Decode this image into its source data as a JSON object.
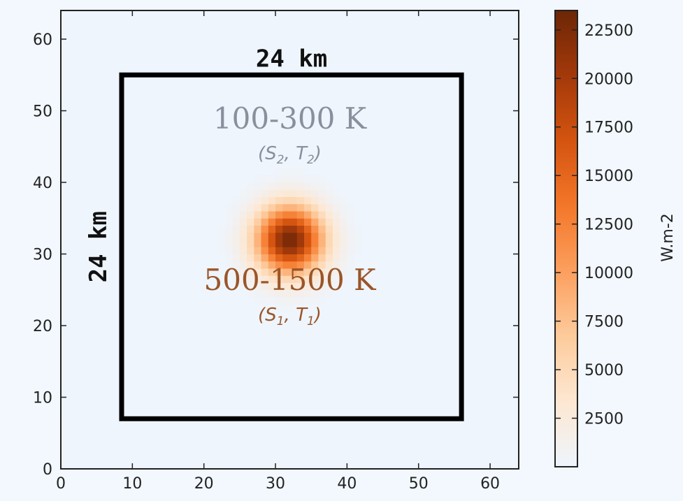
{
  "chart_data": {
    "type": "heatmap",
    "title": "",
    "xlabel": "",
    "ylabel": "",
    "xlim": [
      0,
      64
    ],
    "ylim": [
      0,
      64
    ],
    "x_ticks": [
      0,
      10,
      20,
      30,
      40,
      50,
      60
    ],
    "y_ticks": [
      0,
      10,
      20,
      30,
      40,
      50,
      60
    ],
    "x_tick_labels": [
      "0",
      "10",
      "20",
      "30",
      "40",
      "50",
      "60"
    ],
    "y_tick_labels": [
      "0",
      "10",
      "20",
      "30",
      "40",
      "50",
      "60"
    ],
    "hotspot": {
      "center": [
        32,
        32
      ],
      "peak": 23000,
      "sigma": 3.2
    },
    "box": {
      "x": [
        8.5,
        56
      ],
      "y": [
        7,
        55
      ]
    },
    "box_labels": {
      "top": "24 km",
      "left": "24 km"
    },
    "regions": [
      {
        "label": "100-300 K",
        "sub": "(S2, T2)",
        "sub_sym1": "S",
        "sub_idx1": "2",
        "sub_sym2": "T",
        "sub_idx2": "2",
        "color": "#8a8f9c",
        "x": 32,
        "y": 47.5
      },
      {
        "label": "500-1500 K",
        "sub": "(S1, T1)",
        "sub_sym1": "S",
        "sub_idx1": "1",
        "sub_sym2": "T",
        "sub_idx2": "1",
        "color": "#9b5528",
        "x": 32,
        "y": 25
      }
    ],
    "colorbar": {
      "label": "W.m-2",
      "range": [
        0,
        23500
      ],
      "ticks": [
        2500,
        5000,
        7500,
        10000,
        12500,
        15000,
        17500,
        20000,
        22500
      ],
      "tick_labels": [
        "2500",
        "5000",
        "7500",
        "10000",
        "12500",
        "15000",
        "17500",
        "20000",
        "22500"
      ],
      "colormap": "Oranges",
      "stops": [
        "#eef5fd",
        "#fde7d2",
        "#fdcb9c",
        "#fc9f5e",
        "#f3772a",
        "#d45410",
        "#a3390a",
        "#6c2606"
      ]
    }
  }
}
